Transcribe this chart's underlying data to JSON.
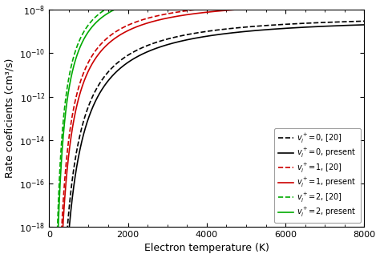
{
  "xlabel": "Electron temperature (K)",
  "ylabel": "Rate coeficients (cm³/s)",
  "xlim": [
    0,
    8000
  ],
  "ylim": [
    1e-18,
    1e-08
  ],
  "curves": [
    {
      "label": "$v_i^+$=0, [20]",
      "color": "#000000",
      "linestyle": "--",
      "A": 6.5e-08,
      "b": 0.5,
      "T0": 11500
    },
    {
      "label": "$v_i^+$=0, present",
      "color": "#000000",
      "linestyle": "-",
      "A": 5e-08,
      "b": 0.5,
      "T0": 12500
    },
    {
      "label": "$v_i^+$=1, [20]",
      "color": "#cc0000",
      "linestyle": "--",
      "A": 3.5e-07,
      "b": 0.5,
      "T0": 8500
    },
    {
      "label": "$v_i^+$=1, present",
      "color": "#cc0000",
      "linestyle": "-",
      "A": 2.8e-07,
      "b": 0.5,
      "T0": 9200
    },
    {
      "label": "$v_i^+$=2, [20]",
      "color": "#00aa00",
      "linestyle": "--",
      "A": 1.5e-06,
      "b": 0.5,
      "T0": 6000
    },
    {
      "label": "$v_i^+$=2, present",
      "color": "#00aa00",
      "linestyle": "-",
      "A": 1.2e-06,
      "b": 0.5,
      "T0": 6500
    }
  ],
  "legend_fontsize": 7,
  "tick_labelsize": 8,
  "axis_labelsize": 9,
  "linewidth": 1.2
}
